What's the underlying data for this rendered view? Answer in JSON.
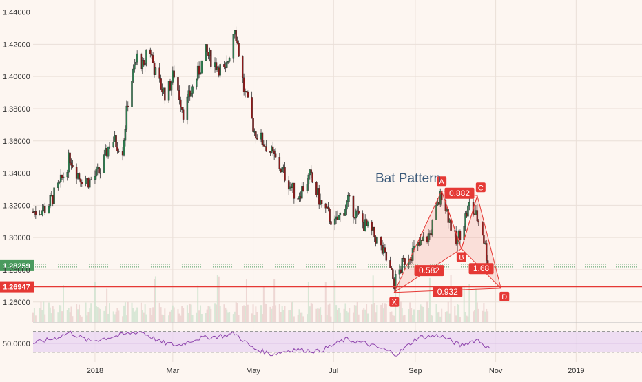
{
  "colors": {
    "background": "#fdf6f1",
    "grid": "#eadfd8",
    "up": "#2e7d4f",
    "down": "#8b1a1a",
    "wick": "#333333",
    "pattern": "#e53935",
    "rsi": "#8e44ad",
    "rsi_band": "#ead7f3",
    "volume_up": "#cfe3cf",
    "volume_down": "#ead0cd",
    "label_green": "#4a9a5e",
    "label_red": "#e53935",
    "bat_text": "#3c5a7a"
  },
  "chart_data": [
    {
      "type": "candlestick",
      "title": "",
      "annotation": "Bat Pattern",
      "x_ticks": [
        "2018",
        "Mar",
        "May",
        "Jul",
        "Sep",
        "Nov",
        "2019"
      ],
      "x_tick_dates": [
        "2018-01-01",
        "2018-03-01",
        "2018-05-01",
        "2018-07-01",
        "2018-09-01",
        "2018-11-01",
        "2019-01-01"
      ],
      "x_range": [
        "2017-11-15",
        "2019-02-20"
      ],
      "y_range": [
        1.2475,
        1.4475
      ],
      "y_ticks": [
        "1.44000",
        "1.42000",
        "1.40000",
        "1.38000",
        "1.36000",
        "1.34000",
        "1.32000",
        "1.30000",
        "1.28000",
        "1.26000"
      ],
      "y_tick_values": [
        1.44,
        1.42,
        1.4,
        1.38,
        1.36,
        1.34,
        1.32,
        1.3,
        1.28,
        1.26
      ],
      "grid": true,
      "price_labels": [
        {
          "text": "1.28259",
          "value": 1.28259,
          "color": "green"
        },
        {
          "text": "1.26947",
          "value": 1.26947,
          "color": "red"
        }
      ],
      "close_path": [
        [
          "2017-11-15",
          1.316
        ],
        [
          "2017-11-25",
          1.318
        ],
        [
          "2017-12-05",
          1.332
        ],
        [
          "2017-12-13",
          1.35
        ],
        [
          "2017-12-20",
          1.338
        ],
        [
          "2017-12-28",
          1.335
        ],
        [
          "2018-01-06",
          1.342
        ],
        [
          "2018-01-13",
          1.362
        ],
        [
          "2018-01-22",
          1.355
        ],
        [
          "2018-01-27",
          1.392
        ],
        [
          "2018-02-03",
          1.415
        ],
        [
          "2018-02-07",
          1.403
        ],
        [
          "2018-02-10",
          1.423
        ],
        [
          "2018-02-17",
          1.398
        ],
        [
          "2018-02-24",
          1.388
        ],
        [
          "2018-03-02",
          1.402
        ],
        [
          "2018-03-09",
          1.378
        ],
        [
          "2018-03-17",
          1.395
        ],
        [
          "2018-03-26",
          1.415
        ],
        [
          "2018-04-02",
          1.408
        ],
        [
          "2018-04-10",
          1.402
        ],
        [
          "2018-04-17",
          1.432
        ],
        [
          "2018-04-24",
          1.392
        ],
        [
          "2018-05-02",
          1.366
        ],
        [
          "2018-05-13",
          1.355
        ],
        [
          "2018-05-24",
          1.34
        ],
        [
          "2018-06-03",
          1.325
        ],
        [
          "2018-06-13",
          1.338
        ],
        [
          "2018-06-22",
          1.32
        ],
        [
          "2018-07-02",
          1.308
        ],
        [
          "2018-07-12",
          1.322
        ],
        [
          "2018-07-22",
          1.31
        ],
        [
          "2018-08-02",
          1.3
        ],
        [
          "2018-08-10",
          1.286
        ],
        [
          "2018-08-16",
          1.272
        ],
        [
          "2018-08-25",
          1.288
        ],
        [
          "2018-09-03",
          1.294
        ],
        [
          "2018-09-12",
          1.302
        ],
        [
          "2018-09-21",
          1.328
        ],
        [
          "2018-10-02",
          1.296
        ],
        [
          "2018-10-12",
          1.32
        ],
        [
          "2018-10-21",
          1.308
        ],
        [
          "2018-10-26",
          1.285
        ]
      ],
      "bat_pattern": {
        "points": [
          {
            "label": "X",
            "date": "2018-08-16",
            "value": 1.266
          },
          {
            "label": "A",
            "date": "2018-09-21",
            "value": 1.329
          },
          {
            "label": "B",
            "date": "2018-10-06",
            "value": 1.293
          },
          {
            "label": "C",
            "date": "2018-10-18",
            "value": 1.326
          },
          {
            "label": "D",
            "date": "2018-11-05",
            "value": 1.2685
          }
        ],
        "ratios": [
          "0.882",
          "0.582",
          "1.68",
          "0.932"
        ]
      }
    },
    {
      "type": "line",
      "title": "",
      "y_range": [
        42,
        60
      ],
      "y_ticks": [
        "50.0000"
      ],
      "y_tick_values": [
        50
      ],
      "band": [
        45.5,
        56
      ],
      "series": [
        {
          "x": [
            "2017-11-15",
            "2017-12-01",
            "2017-12-13",
            "2017-12-28",
            "2018-01-15",
            "2018-02-05",
            "2018-02-20",
            "2018-03-05",
            "2018-03-20",
            "2018-04-10",
            "2018-04-17",
            "2018-05-01",
            "2018-05-15",
            "2018-06-01",
            "2018-06-20",
            "2018-07-10",
            "2018-07-25",
            "2018-08-08",
            "2018-08-18",
            "2018-09-03",
            "2018-09-20",
            "2018-10-05",
            "2018-10-18",
            "2018-10-28"
          ],
          "values": [
            50,
            52.5,
            55.5,
            51,
            53.5,
            56,
            50.5,
            49,
            52.5,
            54,
            55,
            47.5,
            44.5,
            47,
            46,
            52,
            50,
            47,
            44.5,
            53,
            54,
            49,
            52,
            47
          ]
        }
      ]
    }
  ]
}
